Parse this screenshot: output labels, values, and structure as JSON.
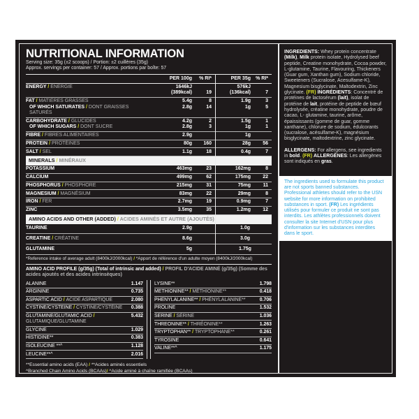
{
  "header": {
    "title": "NUTRITIONAL INFORMATION",
    "serving_line1": [
      {
        "t": "Serving size: 35g (±2 scoops) ",
        "s": "n"
      },
      {
        "t": "/",
        "s": "a"
      },
      {
        "t": " Portion: ±2 cuillères (35g)",
        "s": "n"
      }
    ],
    "serving_line2": [
      {
        "t": "Approx. servings per container: 57 ",
        "s": "n"
      },
      {
        "t": "/",
        "s": "a"
      },
      {
        "t": " Approx. portions par boîte: 57",
        "s": "n"
      }
    ]
  },
  "table": {
    "columns": [
      "PER 100g",
      "% RI*",
      "PER 35g",
      "% RI*"
    ],
    "main_rows": [
      {
        "lines": [
          {
            "en": "ENERGY",
            "fr": "ÉNERGIE",
            "v100": "1646kJ",
            "v35": "576kJ"
          },
          {
            "v100": "(389kcal)",
            "ri100": "19",
            "v35": "(136kcal)",
            "ri35": "7"
          }
        ]
      },
      {
        "lines": [
          {
            "en": "FAT",
            "fr": "MATIÈRES GRASSES",
            "v100": "5.4g",
            "ri100": "8",
            "v35": "1.9g",
            "ri35": "3"
          },
          {
            "en": "OF WHICH SATURATES",
            "fr": "DONT GRAISSES SATURÉS",
            "indent": true,
            "v100": "2.8g",
            "ri100": "14",
            "v35": "1g",
            "ri35": "5"
          }
        ]
      },
      {
        "lines": [
          {
            "en": "CARBOHYDRATE",
            "fr": "GLUCIDES",
            "v100": "4.2g",
            "ri100": "2",
            "v35": "1.5g",
            "ri35": "1"
          },
          {
            "en": "OF WHICH SUGARS",
            "fr": "DONT SUCRE",
            "indent": true,
            "v100": "2.8g",
            "ri100": "3",
            "v35": "1g",
            "ri35": "1"
          }
        ]
      },
      {
        "lines": [
          {
            "en": "FIBRE",
            "fr": "FIBRES ALIMENTAIRES",
            "v100": "2.9g",
            "v35": "1g"
          }
        ]
      },
      {
        "lines": [
          {
            "en": "PROTEIN",
            "fr": "PROTÉINES",
            "v100": "80g",
            "ri100": "160",
            "v35": "28g",
            "ri35": "56"
          }
        ]
      },
      {
        "lines": [
          {
            "en": "SALT",
            "fr": "SEL",
            "v100": "1.1g",
            "ri100": "18",
            "v35": "0.4g",
            "ri35": "7"
          }
        ]
      }
    ],
    "minerals_band": {
      "en": "MINERALS",
      "fr": "MINÉRAUX"
    },
    "mineral_rows": [
      {
        "lines": [
          {
            "en": "POTASSIUM",
            "fr": "",
            "v100": "463mg",
            "ri100": "23",
            "v35": "162mg",
            "ri35": "8"
          }
        ]
      },
      {
        "lines": [
          {
            "en": "CALCIUM",
            "fr": "",
            "v100": "499mg",
            "ri100": "62",
            "v35": "175mg",
            "ri35": "22"
          }
        ]
      },
      {
        "lines": [
          {
            "en": "PHOSPHORUS",
            "fr": "PHOSPHORE",
            "v100": "215mg",
            "ri100": "31",
            "v35": "75mg",
            "ri35": "11"
          }
        ]
      },
      {
        "lines": [
          {
            "en": "MAGNESIUM",
            "fr": "MAGNÉSIUM",
            "v100": "83mg",
            "ri100": "22",
            "v35": "29mg",
            "ri35": "8"
          }
        ]
      },
      {
        "lines": [
          {
            "en": "IRON",
            "fr": "FER",
            "v100": "2.7mg",
            "ri100": "19",
            "v35": "0.9mg",
            "ri35": "7"
          }
        ]
      },
      {
        "lines": [
          {
            "en": "ZINC",
            "fr": "",
            "v100": "3.5mg",
            "ri100": "35",
            "v35": "1.2mg",
            "ri35": "12"
          }
        ]
      }
    ],
    "added_band": {
      "en": "AMINO ACIDS AND OTHER (ADDED)",
      "fr": "ACIDES AMINÉS ET AUTRE (AJOUTÉS)"
    },
    "added_rows": [
      {
        "en": "TAURINE",
        "fr": "",
        "v100": "2.9g",
        "v35": "1.0g"
      },
      {
        "en": "CREATINE",
        "fr": "CRÉATINE",
        "v100": "8.6g",
        "v35": "3.0g"
      },
      {
        "en": "GLUTAMINE",
        "fr": "",
        "v100": "5g",
        "v35": "1.75g"
      }
    ],
    "reference_note": [
      {
        "t": "*Reference intake of average adult (8400kJ/2000kcal) ",
        "s": "n"
      },
      {
        "t": "/",
        "s": "a"
      },
      {
        "t": " *Apport de référence d'un adulte moyen  (8400kJ/2000kcal)",
        "s": "n"
      }
    ]
  },
  "amino_profile": {
    "header_segments": [
      {
        "t": "AMINO ACID PROFILE ",
        "s": "b"
      },
      {
        "t": "(g/35g) (Total of intrinsic and added) ",
        "s": "n"
      },
      {
        "t": "/",
        "s": "a"
      },
      {
        "t": " PROFIL D'ACIDE AMINÉ (g/35g) (Somme des acides ajoutés et des acides intrinsèques)",
        "s": "g"
      }
    ],
    "left": [
      {
        "en": "ALANINE",
        "fr": "",
        "value": "1.147"
      },
      {
        "en": "ARGININE",
        "fr": "",
        "value": "0.735"
      },
      {
        "en": "ASPARTIC ACID",
        "fr": "ACIDE ASPARTIQUE",
        "value": "2.080"
      },
      {
        "en": "CYSTINE/CYSTEINE",
        "fr": "CYSTINE/CYSTÉINE",
        "value": "0.388"
      },
      {
        "en": "GLUTAMINE/GLUTAMIC ACID",
        "fr": "GLUTAMIQUE/GLUTAMINE",
        "value": "5.432"
      },
      {
        "en": "GLYCINE",
        "fr": "",
        "value": "1.029"
      },
      {
        "en": "HISTIDINE**",
        "fr": "",
        "value": "0.383"
      },
      {
        "en": "ISOLEUCINE **^",
        "fr": "",
        "value": "1.128"
      },
      {
        "en": "LEUCINE**^",
        "fr": "",
        "value": "2.016"
      }
    ],
    "right": [
      {
        "en": "LYSINE**",
        "fr": "",
        "value": "1.798"
      },
      {
        "en": "METHIONINE**",
        "fr": "MÉTHIONINE**",
        "value": "0.418"
      },
      {
        "en": "PHENYLALANINE**",
        "fr": "PHÉNYLALANINE**",
        "value": "0.706"
      },
      {
        "en": "PROLINE",
        "fr": "",
        "value": "1.532"
      },
      {
        "en": "SERINE",
        "fr": "SÉRINE",
        "value": "1.036"
      },
      {
        "en": "THREONINE**",
        "fr": "THRÉONINE**",
        "value": "1.263"
      },
      {
        "en": "TRYPTOPHAN**",
        "fr": "TRYPTOPHANE**",
        "value": "0.261"
      },
      {
        "en": "TYROSINE",
        "fr": "",
        "value": "0.641"
      },
      {
        "en": "VALINE**^",
        "fr": "",
        "value": "1.175"
      }
    ],
    "footnotes": [
      [
        {
          "t": "**Essential amino acids (EAA) ",
          "s": "n"
        },
        {
          "t": "/",
          "s": "a"
        },
        {
          "t": " **Acides aminés essentiels",
          "s": "n"
        }
      ],
      [
        {
          "t": "^Branched Chain Amino Acids (BCAAs)",
          "s": "n"
        },
        {
          "t": "/",
          "s": "a"
        },
        {
          "t": " ^Acide aminé à chaîne ramifiée (BCAAs)",
          "s": "n"
        }
      ]
    ]
  },
  "right_panel": {
    "ingredients": [
      {
        "t": "INGREDIENTS:",
        "s": "b"
      },
      {
        "t": " Whey protein concentrate ",
        "s": "n"
      },
      {
        "t": "(Milk)",
        "s": "b"
      },
      {
        "t": ", ",
        "s": "n"
      },
      {
        "t": "Milk",
        "s": "b"
      },
      {
        "t": " protein isolate, Hydrolysed beef peptide, Creatine monohydrate, Cocoa powder, L-glutamine, Taurine, Flavouring, Thickeners (Guar gum, Xanthan gum), Sodium chloride, Sweeteners (Sucralose, Acesulfame-K), Magnesium bisglycinate, Maltodextrin, Zinc glycinate. ",
        "s": "n"
      },
      {
        "t": "(FR)",
        "s": "a"
      },
      {
        "t": " ",
        "s": "n"
      },
      {
        "t": "INGRÉDIENTS",
        "s": "b"
      },
      {
        "t": ": Concentré de protéines de lactosérum ",
        "s": "n"
      },
      {
        "t": "(lait)",
        "s": "b"
      },
      {
        "t": ", isolat de protéine de ",
        "s": "n"
      },
      {
        "t": "lait",
        "s": "b"
      },
      {
        "t": ", protéine de peptide de bœuf hydrolysée, créatine monohydrate, poudre de cacao, L- glutamine, taurine, arôme, épaississants (gomme de guar, gomme xanthane), chlorure de sodium, édulcorants (sucralose, acésulfame-K), magnésium bisglycinate, maltodextrine, zinc glycinate.",
        "s": "n"
      }
    ],
    "allergens": [
      {
        "t": "ALLERGENS:",
        "s": "b"
      },
      {
        "t": " For allergens, see ingredients in ",
        "s": "n"
      },
      {
        "t": "bold",
        "s": "b"
      },
      {
        "t": ". ",
        "s": "n"
      },
      {
        "t": "(FR)",
        "s": "a"
      },
      {
        "t": " ",
        "s": "n"
      },
      {
        "t": "ALLERGÈNES",
        "s": "b"
      },
      {
        "t": ": Les allergènes sont indiqués en ",
        "s": "n"
      },
      {
        "t": "gras",
        "s": "b"
      },
      {
        "t": ".",
        "s": "n"
      }
    ],
    "notice": [
      {
        "t": "The ingredients used to formulate this product are not sports banned substances. Professional athletes should refer to the USN website for more information on prohibited substances in sport. ",
        "s": "n"
      },
      {
        "t": "(FR)",
        "s": "b"
      },
      {
        "t": " Les ingrédients utilisés pour formuler ce produit ne sont pas interdits. Les athlètes professionnels doivent consulter la site Internet d'USN pour plus d'information sur les substances interdites dans le sport.",
        "s": "n"
      }
    ]
  },
  "colors": {
    "accent_lime": "#d7df23",
    "notice_blue": "#2ba6df",
    "label_background": "#1e1a1b",
    "band_background": "#f2f2f2"
  }
}
